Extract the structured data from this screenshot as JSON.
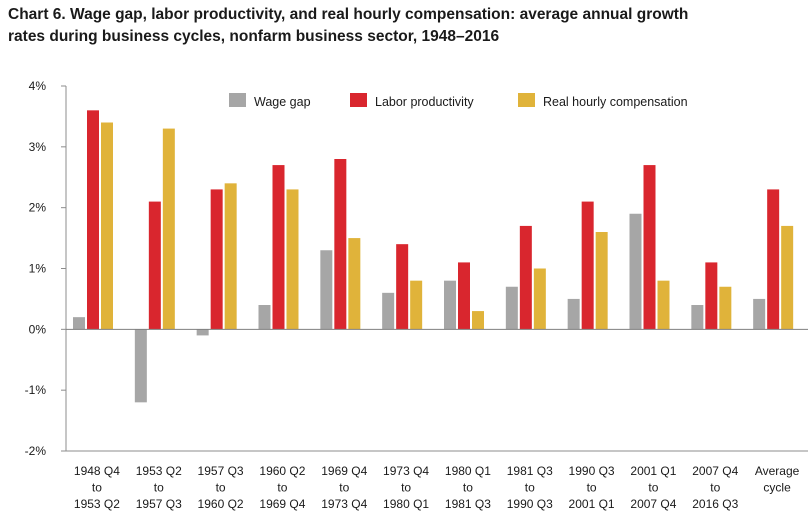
{
  "chart_data": {
    "type": "bar",
    "title_line1": "Chart 6. Wage gap, labor productivity, and real hourly compensation: average annual growth",
    "title_line2": "rates during business cycles, nonfarm business sector, 1948–2016",
    "categories": [
      [
        "1948 Q4",
        "to",
        "1953 Q2"
      ],
      [
        "1953 Q2",
        "to",
        "1957 Q3"
      ],
      [
        "1957 Q3",
        "to",
        "1960 Q2"
      ],
      [
        "1960 Q2",
        "to",
        "1969 Q4"
      ],
      [
        "1969 Q4",
        "to",
        "1973 Q4"
      ],
      [
        "1973 Q4",
        "to",
        "1980 Q1"
      ],
      [
        "1980 Q1",
        "to",
        "1981 Q3"
      ],
      [
        "1981 Q3",
        "to",
        "1990 Q3"
      ],
      [
        "1990 Q3",
        "to",
        "2001 Q1"
      ],
      [
        "2001 Q1",
        "to",
        "2007 Q4"
      ],
      [
        "2007 Q4",
        "to",
        "2016 Q3"
      ],
      [
        "Average",
        "cycle"
      ]
    ],
    "series": [
      {
        "name": "Wage gap",
        "color": "#a6a6a6",
        "values": [
          0.2,
          -1.2,
          -0.1,
          0.4,
          1.3,
          0.6,
          0.8,
          0.7,
          0.5,
          1.9,
          0.4,
          0.5
        ]
      },
      {
        "name": "Labor productivity",
        "color": "#d9262e",
        "values": [
          3.6,
          2.1,
          2.3,
          2.7,
          2.8,
          1.4,
          1.1,
          1.7,
          2.1,
          2.7,
          1.1,
          2.3
        ]
      },
      {
        "name": "Real hourly compensation",
        "color": "#e0b33a",
        "values": [
          3.4,
          3.3,
          2.4,
          2.3,
          1.5,
          0.8,
          0.3,
          1.0,
          1.6,
          0.8,
          0.7,
          1.7
        ]
      }
    ],
    "ylim": [
      -2,
      4
    ],
    "yticks": [
      -2,
      -1,
      0,
      1,
      2,
      3,
      4
    ],
    "tick_suffix": "%",
    "legend_position": "top",
    "grid": false
  }
}
